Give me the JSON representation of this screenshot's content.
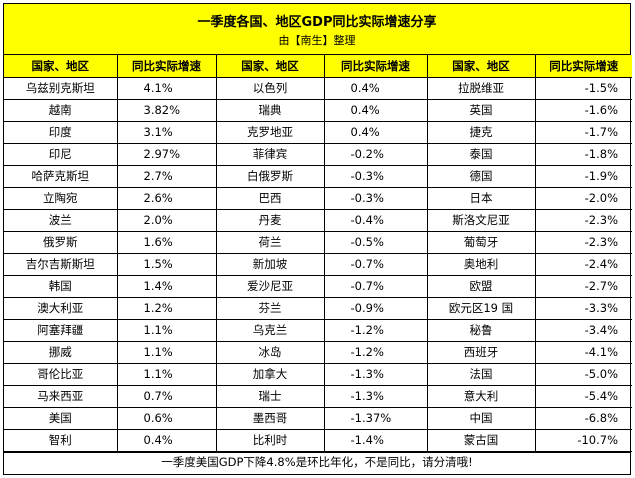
{
  "title": "一季度各国、地区GDP同比实际增速分享",
  "subtitle": "由【南生】整理",
  "headers": [
    "国家、地区",
    "同比实际增速",
    "国家、地区",
    "同比实际增速",
    "国家、地区",
    "同比实际增速"
  ],
  "rows": [
    [
      "乌兹别克斯坦",
      "4.1%",
      "以色列",
      "0.4%",
      "拉脱维亚",
      "-1.5%"
    ],
    [
      "越南",
      "3.82%",
      "瑞典",
      "0.4%",
      "英国",
      "-1.6%"
    ],
    [
      "印度",
      "3.1%",
      "克罗地亚",
      "0.4%",
      "捷克",
      "-1.7%"
    ],
    [
      "印尼",
      "2.97%",
      "菲律宾",
      "-0.2%",
      "泰国",
      "-1.8%"
    ],
    [
      "哈萨克斯坦",
      "2.7%",
      "白俄罗斯",
      "-0.3%",
      "德国",
      "-1.9%"
    ],
    [
      "立陶宛",
      "2.6%",
      "巴西",
      "-0.3%",
      "日本",
      "-2.0%"
    ],
    [
      "波兰",
      "2.0%",
      "丹麦",
      "-0.4%",
      "斯洛文尼亚",
      "-2.3%"
    ],
    [
      "俄罗斯",
      "1.6%",
      "荷兰",
      "-0.5%",
      "葡萄牙",
      "-2.3%"
    ],
    [
      "吉尔吉斯斯坦",
      "1.5%",
      "新加坡",
      "-0.7%",
      "奥地利",
      "-2.4%"
    ],
    [
      "韩国",
      "1.4%",
      "爱沙尼亚",
      "-0.7%",
      "欧盟",
      "-2.7%"
    ],
    [
      "澳大利亚",
      "1.2%",
      "芬兰",
      "-0.9%",
      "欧元区19 国",
      "-3.3%"
    ],
    [
      "阿塞拜疆",
      "1.1%",
      "乌克兰",
      "-1.2%",
      "秘鲁",
      "-3.4%"
    ],
    [
      "挪威",
      "1.1%",
      "冰岛",
      "-1.2%",
      "西班牙",
      "-4.1%"
    ],
    [
      "哥伦比亚",
      "1.1%",
      "加拿大",
      "-1.3%",
      "法国",
      "-5.0%"
    ],
    [
      "马来西亚",
      "0.7%",
      "瑞士",
      "-1.3%",
      "意大利",
      "-5.4%"
    ],
    [
      "美国",
      "0.6%",
      "墨西哥",
      "-1.37%",
      "中国",
      "-6.8%"
    ],
    [
      "智利",
      "0.4%",
      "比利时",
      "-1.4%",
      "蒙古国",
      "-10.7%"
    ]
  ],
  "footer": "一季度美国GDP下降4.8%是环比年化，不是同比，请分清哦!"
}
